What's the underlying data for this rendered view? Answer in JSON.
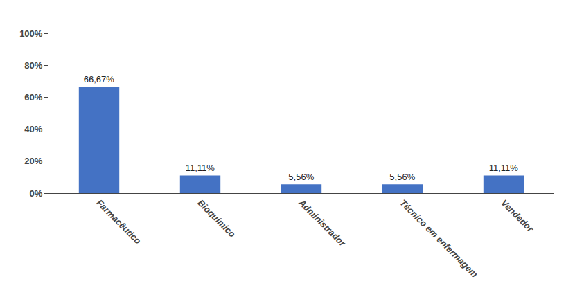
{
  "chart_data": {
    "type": "bar",
    "categories": [
      "Farmacêutico",
      "Bioquímico",
      "Administrador",
      "Técnico em enfermagem",
      "Vendedor"
    ],
    "values": [
      66.67,
      11.11,
      5.56,
      5.56,
      11.11
    ],
    "value_labels": [
      "66,67%",
      "11,11%",
      "5,56%",
      "5,56%",
      "11,11%"
    ],
    "data_labels": true,
    "color": "#4472C4",
    "ylim": [
      0,
      108
    ],
    "yticks": [
      {
        "value": 0,
        "label": "0%"
      },
      {
        "value": 20,
        "label": "20%"
      },
      {
        "value": 40,
        "label": "40%"
      },
      {
        "value": 60,
        "label": "60%"
      },
      {
        "value": 80,
        "label": "80%"
      },
      {
        "value": 100,
        "label": "100%"
      }
    ],
    "grid": false
  }
}
